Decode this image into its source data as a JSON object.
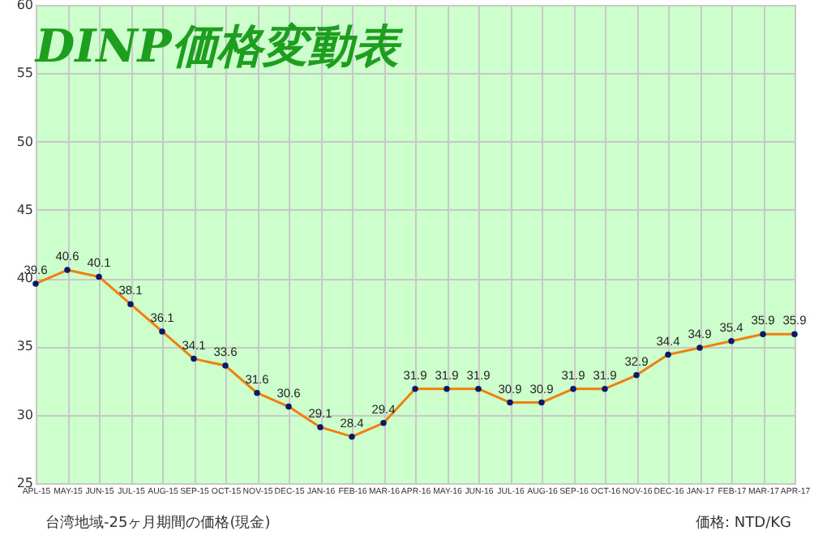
{
  "chart_data": {
    "type": "line",
    "title": "DINP価格変動表",
    "categories": [
      "APL-15",
      "MAY-15",
      "JUN-15",
      "JUL-15",
      "AUG-15",
      "SEP-15",
      "OCT-15",
      "NOV-15",
      "DEC-15",
      "JAN-16",
      "FEB-16",
      "MAR-16",
      "APR-16",
      "MAY-16",
      "JUN-16",
      "JUL-16",
      "AUG-16",
      "SEP-16",
      "OCT-16",
      "NOV-16",
      "DEC-16",
      "JAN-17",
      "FEB-17",
      "MAR-17",
      "APR-17"
    ],
    "series": [
      {
        "color": "#f07f0c",
        "values": [
          39.6,
          40.6,
          40.1,
          38.1,
          36.1,
          34.1,
          33.6,
          31.6,
          30.6,
          29.1,
          28.4,
          29.4,
          31.9,
          31.9,
          31.9,
          30.9,
          30.9,
          31.9,
          31.9,
          32.9,
          34.4,
          34.9,
          35.4,
          35.9,
          35.9
        ]
      }
    ],
    "ylim": [
      25,
      60
    ],
    "yticks": [
      25,
      30,
      35,
      40,
      45,
      50,
      55,
      60
    ],
    "grid": true,
    "marker": "circle",
    "data_labels": true,
    "annotations": [
      "台湾地域-25ヶ月期間の価格(現金)",
      "価格: NTD/KG"
    ]
  }
}
